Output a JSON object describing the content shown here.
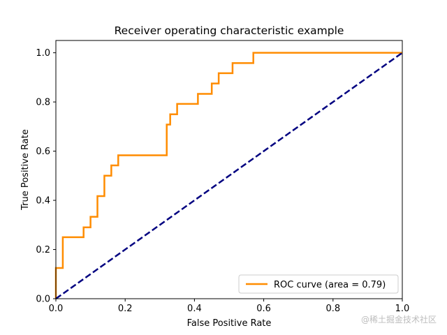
{
  "chart_data": {
    "type": "line",
    "title": "Receiver operating characteristic example",
    "xlabel": "False Positive Rate",
    "ylabel": "True Positive Rate",
    "xlim": [
      0,
      1
    ],
    "ylim": [
      0,
      1.05
    ],
    "x_ticks": [
      "0.0",
      "0.2",
      "0.4",
      "0.6",
      "0.8",
      "1.0"
    ],
    "y_ticks": [
      "0.0",
      "0.2",
      "0.4",
      "0.6",
      "0.8",
      "1.0"
    ],
    "legend_position": "lower-right",
    "grid": false,
    "series": [
      {
        "name": "ROC curve (area = 0.79)",
        "color": "#ff8c00",
        "style": "solid",
        "x": [
          0.0,
          0.0,
          0.0,
          0.02,
          0.02,
          0.08,
          0.08,
          0.1,
          0.1,
          0.12,
          0.12,
          0.14,
          0.14,
          0.16,
          0.16,
          0.18,
          0.18,
          0.32,
          0.32,
          0.33,
          0.33,
          0.35,
          0.35,
          0.41,
          0.41,
          0.45,
          0.45,
          0.47,
          0.47,
          0.51,
          0.51,
          0.57,
          0.57,
          1.0
        ],
        "y": [
          0.0,
          0.0,
          0.125,
          0.125,
          0.25,
          0.25,
          0.29,
          0.29,
          0.333,
          0.333,
          0.417,
          0.417,
          0.5,
          0.5,
          0.542,
          0.542,
          0.583,
          0.583,
          0.708,
          0.708,
          0.75,
          0.75,
          0.792,
          0.792,
          0.833,
          0.833,
          0.875,
          0.875,
          0.917,
          0.917,
          0.958,
          0.958,
          1.0,
          1.0
        ]
      },
      {
        "name": "",
        "color": "#000080",
        "style": "dashed",
        "x": [
          0,
          1
        ],
        "y": [
          0,
          1
        ]
      }
    ]
  },
  "watermark": "@稀土掘金技术社区"
}
